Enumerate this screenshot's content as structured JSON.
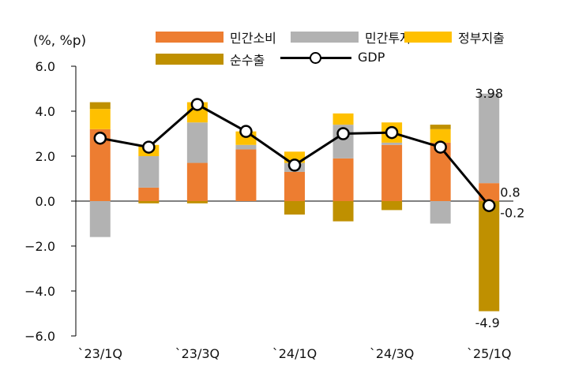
{
  "chart_data": {
    "type": "bar",
    "stacked": true,
    "unit_label": "(%, %p)",
    "x": [
      "`23/1Q",
      "`23/2Q",
      "`23/3Q",
      "`23/4Q",
      "`24/1Q",
      "`24/2Q",
      "`24/3Q",
      "`24/4Q",
      "`25/1Q"
    ],
    "x_tick_labels": [
      "`23/1Q",
      "",
      "`23/3Q",
      "",
      "`24/1Q",
      "",
      "`24/3Q",
      "",
      "`25/1Q"
    ],
    "ylim": [
      -6.0,
      6.0
    ],
    "yticks": [
      "6.0",
      "4.0",
      "2.0",
      "0.0",
      "−2.0",
      "−4.0",
      "−6.0"
    ],
    "ytick_values": [
      6,
      4,
      2,
      0,
      -2,
      -4,
      -6
    ],
    "series": [
      {
        "name": "민간소비",
        "type": "bar",
        "color": "#ED7D31",
        "values": [
          3.2,
          0.6,
          1.7,
          2.3,
          1.3,
          1.9,
          2.5,
          2.6,
          0.8
        ]
      },
      {
        "name": "민간투자",
        "type": "bar",
        "color": "#B2B2B2",
        "values": [
          -1.6,
          1.4,
          1.8,
          0.2,
          0.4,
          1.5,
          0.1,
          -1.0,
          3.98
        ]
      },
      {
        "name": "정부지출",
        "type": "bar",
        "color": "#FFC000",
        "values": [
          0.9,
          0.5,
          0.9,
          0.6,
          0.5,
          0.5,
          0.9,
          0.6,
          0.0
        ]
      },
      {
        "name": "순수출",
        "type": "bar",
        "color": "#BF9000",
        "values": [
          0.3,
          -0.1,
          -0.1,
          0.0,
          -0.6,
          -0.9,
          -0.4,
          0.2,
          -4.9
        ]
      },
      {
        "name": "GDP",
        "type": "line",
        "color": "#000000",
        "values": [
          2.8,
          2.4,
          4.3,
          3.1,
          1.6,
          3.0,
          3.05,
          2.4,
          -0.2
        ]
      }
    ],
    "annotations": [
      {
        "text": "3.98",
        "x": "`25/1Q",
        "y": 4.8
      },
      {
        "text": "0.8",
        "x": "`25/1Q",
        "y": 0.4
      },
      {
        "text": "-0.2",
        "x": "`25/1Q",
        "y": -0.5
      },
      {
        "text": "-4.9",
        "x": "`25/1Q",
        "y": -5.4
      }
    ],
    "legend_position": "top"
  }
}
